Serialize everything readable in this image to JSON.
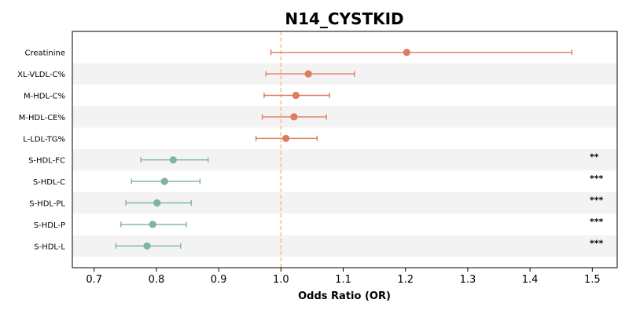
{
  "chart_data": {
    "type": "forest",
    "title": "N14_CYSTKID",
    "xlabel": "Odds Ratio (OR)",
    "xlim": [
      0.665,
      1.54
    ],
    "xticks": [
      0.7,
      0.8,
      0.9,
      1.0,
      1.1,
      1.2,
      1.3,
      1.4,
      1.5
    ],
    "xtick_labels": [
      "0.7",
      "0.8",
      "0.9",
      "1.0",
      "1.1",
      "1.2",
      "1.3",
      "1.4",
      "1.5"
    ],
    "reference_line": 1.0,
    "colors": {
      "up": "#e07b5f",
      "down": "#7fb59a",
      "reference": "#f5c07a",
      "stripe": "#f3f3f3"
    },
    "rows": [
      {
        "label": "Creatinine",
        "or": 1.202,
        "lo": 0.984,
        "hi": 1.467,
        "sig": ""
      },
      {
        "label": "XL-VLDL-C%",
        "or": 1.044,
        "lo": 0.976,
        "hi": 1.118,
        "sig": ""
      },
      {
        "label": "M-HDL-C%",
        "or": 1.024,
        "lo": 0.973,
        "hi": 1.078,
        "sig": ""
      },
      {
        "label": "M-HDL-CE%",
        "or": 1.021,
        "lo": 0.97,
        "hi": 1.073,
        "sig": ""
      },
      {
        "label": "L-LDL-TG%",
        "or": 1.008,
        "lo": 0.96,
        "hi": 1.058,
        "sig": ""
      },
      {
        "label": "S-HDL-FC",
        "or": 0.827,
        "lo": 0.775,
        "hi": 0.883,
        "sig": "**"
      },
      {
        "label": "S-HDL-C",
        "or": 0.813,
        "lo": 0.76,
        "hi": 0.87,
        "sig": "***"
      },
      {
        "label": "S-HDL-PL",
        "or": 0.801,
        "lo": 0.751,
        "hi": 0.856,
        "sig": "***"
      },
      {
        "label": "S-HDL-P",
        "or": 0.794,
        "lo": 0.743,
        "hi": 0.848,
        "sig": "***"
      },
      {
        "label": "S-HDL-L",
        "or": 0.785,
        "lo": 0.735,
        "hi": 0.839,
        "sig": "***"
      }
    ]
  }
}
